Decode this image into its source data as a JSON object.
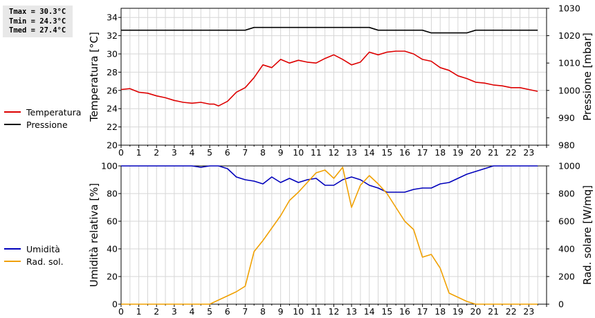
{
  "stats": {
    "tmax": "Tmax = 30.3°C",
    "tmin": "Tmin = 24.3°C",
    "tmed": "Tmed = 27.4°C"
  },
  "legend_top": [
    {
      "label": "Temperatura",
      "color": "#dd0000"
    },
    {
      "label": "Pressione",
      "color": "#000000"
    }
  ],
  "legend_bottom": [
    {
      "label": "Umidità",
      "color": "#0000bb"
    },
    {
      "label": "Rad. sol.",
      "color": "#f0a000"
    }
  ],
  "chart_data": [
    {
      "type": "line",
      "xlabel": "",
      "ylabel": "Temperatura [°C]",
      "y2label": "Pressione [mbar]",
      "xlim": [
        0,
        24
      ],
      "ylim": [
        20,
        35
      ],
      "y2lim": [
        980,
        1030
      ],
      "xticks": [
        "0",
        "1",
        "2",
        "3",
        "4",
        "5",
        "6",
        "7",
        "8",
        "9",
        "10",
        "11",
        "12",
        "13",
        "14",
        "15",
        "16",
        "17",
        "18",
        "19",
        "20",
        "21",
        "22",
        "23"
      ],
      "yticks": [
        "20",
        "22",
        "24",
        "26",
        "28",
        "30",
        "32",
        "34"
      ],
      "y2ticks": [
        "980",
        "990",
        "1000",
        "1010",
        "1020",
        "1030"
      ],
      "grid": true,
      "series": [
        {
          "name": "Temperatura",
          "color": "#dd0000",
          "axis": "left",
          "x": [
            0,
            0.5,
            1,
            1.5,
            2,
            2.5,
            3,
            3.5,
            4,
            4.5,
            5,
            5.25,
            5.5,
            6,
            6.5,
            7,
            7.5,
            8,
            8.5,
            9,
            9.5,
            10,
            10.5,
            11,
            11.5,
            12,
            12.5,
            13,
            13.5,
            14,
            14.5,
            15,
            15.5,
            16,
            16.5,
            17,
            17.5,
            18,
            18.5,
            19,
            19.5,
            20,
            20.5,
            21,
            21.5,
            22,
            22.5,
            23,
            23.5
          ],
          "values": [
            26.1,
            26.2,
            25.8,
            25.7,
            25.4,
            25.2,
            24.9,
            24.7,
            24.6,
            24.7,
            24.5,
            24.5,
            24.3,
            24.8,
            25.8,
            26.3,
            27.4,
            28.8,
            28.5,
            29.4,
            29.0,
            29.3,
            29.1,
            29.0,
            29.5,
            29.9,
            29.4,
            28.8,
            29.1,
            30.2,
            29.9,
            30.2,
            30.3,
            30.3,
            30.0,
            29.4,
            29.2,
            28.5,
            28.2,
            27.6,
            27.3,
            26.9,
            26.8,
            26.6,
            26.5,
            26.3,
            26.3,
            26.1,
            25.9
          ]
        },
        {
          "name": "Pressione",
          "color": "#000000",
          "axis": "right",
          "x": [
            0,
            7,
            7.5,
            14,
            14.5,
            17,
            17.5,
            19.5,
            20,
            23.5
          ],
          "values": [
            1022,
            1022,
            1023,
            1023,
            1022,
            1022,
            1021,
            1021,
            1022,
            1022
          ]
        }
      ]
    },
    {
      "type": "line",
      "xlabel": "",
      "ylabel": "Umidità relativa [%]",
      "y2label": "Rad. solare [W/mq]",
      "xlim": [
        0,
        24
      ],
      "ylim": [
        0,
        100
      ],
      "y2lim": [
        0,
        1000
      ],
      "xticks": [
        "0",
        "1",
        "2",
        "3",
        "4",
        "5",
        "6",
        "7",
        "8",
        "9",
        "10",
        "11",
        "12",
        "13",
        "14",
        "15",
        "16",
        "17",
        "18",
        "19",
        "20",
        "21",
        "22",
        "23"
      ],
      "yticks": [
        "0",
        "20",
        "40",
        "60",
        "80",
        "100"
      ],
      "y2ticks": [
        "0",
        "200",
        "400",
        "600",
        "800",
        "1000"
      ],
      "grid": true,
      "series": [
        {
          "name": "Umidità",
          "color": "#0000bb",
          "axis": "left",
          "x": [
            0,
            4,
            4.5,
            5,
            5.5,
            6,
            6.5,
            7,
            7.5,
            8,
            8.5,
            9,
            9.5,
            10,
            10.5,
            11,
            11.5,
            12,
            12.5,
            13,
            13.5,
            14,
            14.5,
            15,
            15.5,
            16,
            16.5,
            17,
            17.5,
            18,
            18.5,
            19,
            19.5,
            20,
            20.5,
            21,
            21.5,
            22,
            22.5,
            23,
            23.5
          ],
          "values": [
            100,
            100,
            99,
            100,
            100,
            98,
            92,
            90,
            89,
            87,
            92,
            88,
            91,
            88,
            90,
            91,
            86,
            86,
            90,
            92,
            90,
            86,
            84,
            81,
            81,
            81,
            83,
            84,
            84,
            87,
            88,
            91,
            94,
            96,
            98,
            100,
            100,
            100,
            100,
            100,
            100
          ]
        },
        {
          "name": "Rad. sol.",
          "color": "#f0a000",
          "axis": "right",
          "x": [
            0,
            5,
            5.5,
            6,
            6.5,
            7,
            7.5,
            8,
            8.5,
            9,
            9.5,
            10,
            10.5,
            11,
            11.5,
            12,
            12.5,
            13,
            13.5,
            14,
            14.5,
            15,
            15.5,
            16,
            16.5,
            17,
            17.5,
            18,
            18.5,
            19,
            19.5,
            20,
            23.5
          ],
          "values": [
            0,
            0,
            30,
            60,
            90,
            130,
            380,
            460,
            550,
            640,
            750,
            810,
            880,
            950,
            970,
            910,
            990,
            700,
            860,
            930,
            870,
            800,
            700,
            600,
            540,
            340,
            360,
            260,
            80,
            50,
            20,
            0,
            0
          ]
        }
      ]
    }
  ]
}
